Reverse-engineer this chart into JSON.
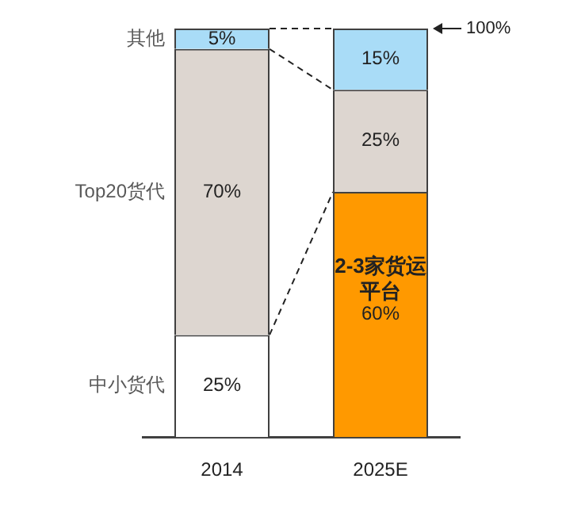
{
  "chart_data": {
    "type": "bar",
    "stacked": true,
    "categories": [
      "2014",
      "2025E"
    ],
    "ylim": [
      0,
      100
    ],
    "legend": "left",
    "grid": false,
    "series": [
      {
        "name": "中小货代",
        "color": "#ffffff",
        "values": [
          25,
          null
        ],
        "value_labels": [
          "25%",
          null
        ]
      },
      {
        "name": "2-3家货运平台",
        "color": "#ff9900",
        "values": [
          null,
          60
        ],
        "value_labels": [
          null,
          "60%"
        ]
      },
      {
        "name": "Top20货代",
        "color": "#ddd6d0",
        "values": [
          70,
          25
        ],
        "value_labels": [
          "70%",
          "25%"
        ]
      },
      {
        "name": "其他",
        "color": "#a9dcf7",
        "values": [
          5,
          15
        ],
        "value_labels": [
          "5%",
          "15%"
        ]
      }
    ],
    "annotations": [
      "100%"
    ]
  }
}
